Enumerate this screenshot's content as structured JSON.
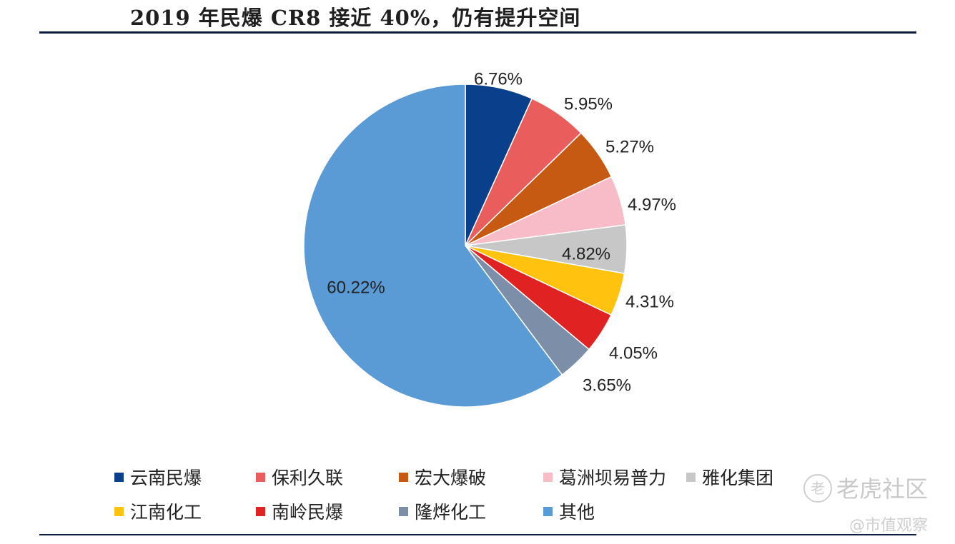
{
  "title": "2019 年民爆 CR8 接近 40%，仍有提升空间",
  "chart_data": {
    "type": "pie",
    "title": "2019 年民爆 CR8 接近 40%，仍有提升空间",
    "slices": [
      {
        "name": "云南民爆",
        "value": 6.76,
        "label": "6.76%",
        "color": "#0a3f8c"
      },
      {
        "name": "保利久联",
        "value": 5.95,
        "label": "5.95%",
        "color": "#ea5d5d"
      },
      {
        "name": "宏大爆破",
        "value": 5.27,
        "label": "5.27%",
        "color": "#c65a12"
      },
      {
        "name": "葛洲坝易普力",
        "value": 4.97,
        "label": "4.97%",
        "color": "#f7bcc7"
      },
      {
        "name": "雅化集团",
        "value": 4.82,
        "label": "4.82%",
        "color": "#c7c7c7"
      },
      {
        "name": "江南化工",
        "value": 4.31,
        "label": "4.31%",
        "color": "#ffc20e"
      },
      {
        "name": "南岭民爆",
        "value": 4.05,
        "label": "4.05%",
        "color": "#e02222"
      },
      {
        "name": "隆烨化工",
        "value": 3.65,
        "label": "3.65%",
        "color": "#7d8fa8"
      },
      {
        "name": "其他",
        "value": 60.22,
        "label": "60.22%",
        "color": "#5b9bd5"
      }
    ],
    "legend_placement": "bottom"
  },
  "watermark": {
    "logo": "老",
    "brand": "老虎社区",
    "sub": "@市值观察"
  }
}
